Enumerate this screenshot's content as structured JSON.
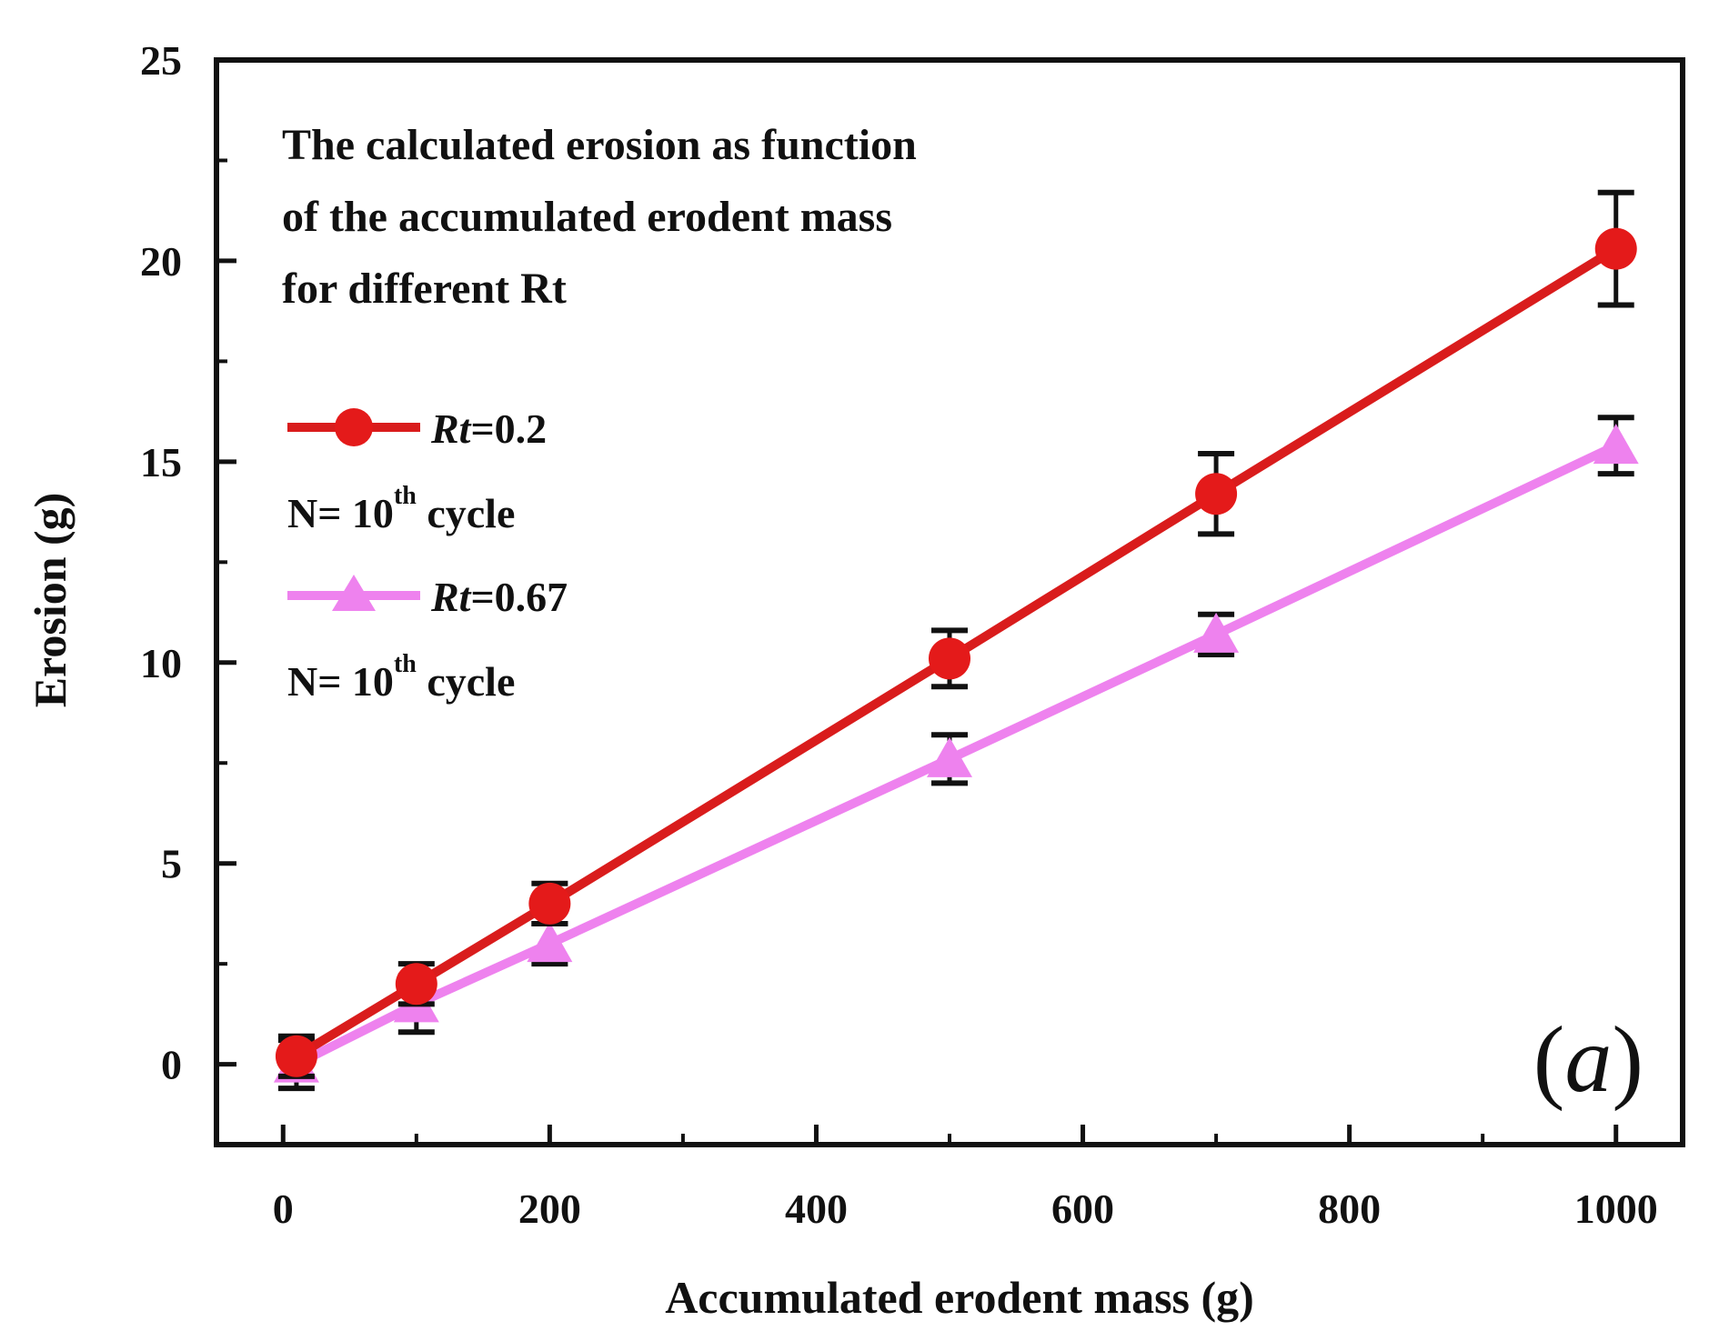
{
  "chart_data": {
    "type": "line",
    "title": "",
    "annotation_lines": [
      "The calculated erosion as function",
      "of the accumulated erodent mass",
      "for different Rt"
    ],
    "xlabel": "Accumulated erodent mass (g)",
    "ylabel": "Erosion (g)",
    "xlim": [
      -50,
      1050
    ],
    "ylim": [
      -2,
      25
    ],
    "xticks": [
      0,
      200,
      400,
      600,
      800,
      1000
    ],
    "xtick_labels": [
      "0",
      "200",
      "400",
      "600",
      "800",
      "1000"
    ],
    "yticks": [
      0,
      5,
      10,
      15,
      20,
      25
    ],
    "ytick_labels": [
      "0",
      "5",
      "10",
      "15",
      "20",
      "25"
    ],
    "grid": false,
    "legend_position": "upper-left",
    "panel_label": "a",
    "series": [
      {
        "name": "Rt=0.2",
        "legend_rt": "Rt",
        "legend_value": "=0.2",
        "note_prefix": "N= 10",
        "note_sup": "th",
        "note_suffix": " cycle",
        "color": "#d91c1c",
        "marker": "circle",
        "x": [
          10,
          100,
          200,
          500,
          700,
          1000
        ],
        "y": [
          0.2,
          2.0,
          4.0,
          10.1,
          14.2,
          20.3
        ],
        "err_low": [
          0.5,
          0.5,
          0.5,
          0.7,
          1.0,
          1.4
        ],
        "err_high": [
          0.5,
          0.5,
          0.5,
          0.7,
          1.0,
          1.4
        ]
      },
      {
        "name": "Rt=0.67",
        "legend_rt": "Rt",
        "legend_value": "=0.67",
        "note_prefix": "N= 10",
        "note_sup": "th",
        "note_suffix": " cycle",
        "color": "#ee82ee",
        "marker": "triangle",
        "x": [
          10,
          100,
          200,
          500,
          700,
          1000
        ],
        "y": [
          0.0,
          1.5,
          3.0,
          7.6,
          10.7,
          15.4
        ],
        "err_low": [
          0.6,
          0.7,
          0.5,
          0.6,
          0.5,
          0.7
        ],
        "err_high": [
          0.6,
          0.7,
          0.5,
          0.6,
          0.5,
          0.7
        ]
      }
    ]
  }
}
